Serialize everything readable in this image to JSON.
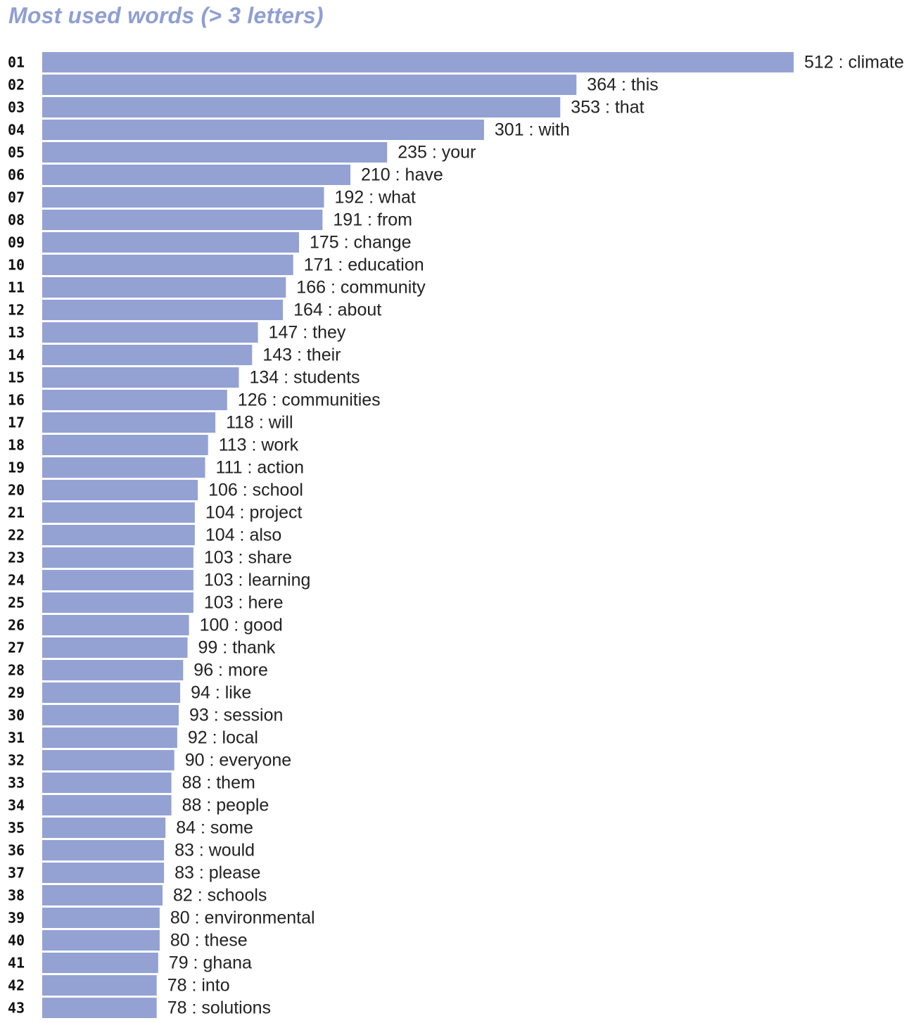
{
  "title": "Most used words (> 3 letters)",
  "colors": {
    "bar": "#93a2d3",
    "title": "#8f9fd2",
    "text": "#222222"
  },
  "chart_data": {
    "type": "bar",
    "orientation": "horizontal",
    "title": "Most used words (> 3 letters)",
    "xlabel": "",
    "ylabel": "",
    "xlim": [
      0,
      512
    ],
    "grid": false,
    "categories": [
      "01",
      "02",
      "03",
      "04",
      "05",
      "06",
      "07",
      "08",
      "09",
      "10",
      "11",
      "12",
      "13",
      "14",
      "15",
      "16",
      "17",
      "18",
      "19",
      "20",
      "21",
      "22",
      "23",
      "24",
      "25",
      "26",
      "27",
      "28",
      "29",
      "30",
      "31",
      "32",
      "33",
      "34",
      "35",
      "36",
      "37",
      "38",
      "39",
      "40",
      "41",
      "42",
      "43"
    ],
    "words": [
      "climate",
      "this",
      "that",
      "with",
      "your",
      "have",
      "what",
      "from",
      "change",
      "education",
      "community",
      "about",
      "they",
      "their",
      "students",
      "communities",
      "will",
      "work",
      "action",
      "school",
      "project",
      "also",
      "share",
      "learning",
      "here",
      "good",
      "thank",
      "more",
      "like",
      "session",
      "local",
      "everyone",
      "them",
      "people",
      "some",
      "would",
      "please",
      "schools",
      "environmental",
      "these",
      "ghana",
      "into",
      "solutions"
    ],
    "values": [
      512,
      364,
      353,
      301,
      235,
      210,
      192,
      191,
      175,
      171,
      166,
      164,
      147,
      143,
      134,
      126,
      118,
      113,
      111,
      106,
      104,
      104,
      103,
      103,
      103,
      100,
      99,
      96,
      94,
      93,
      92,
      90,
      88,
      88,
      84,
      83,
      83,
      82,
      80,
      80,
      79,
      78,
      78
    ],
    "labels": [
      "512 : climate",
      "364 : this",
      "353 : that",
      "301 : with",
      "235 : your",
      "210 : have",
      "192 : what",
      "191 : from",
      "175 : change",
      "171 : education",
      "166 : community",
      "164 : about",
      "147 : they",
      "143 : their",
      "134 : students",
      "126 : communities",
      "118 : will",
      "113 : work",
      "111 : action",
      "106 : school",
      "104 : project",
      "104 : also",
      "103 : share",
      "103 : learning",
      "103 : here",
      "100 : good",
      "99 : thank",
      "96 : more",
      "94 : like",
      "93 : session",
      "92 : local",
      "90 : everyone",
      "88 : them",
      "88 : people",
      "84 : some",
      "83 : would",
      "83 : please",
      "82 : schools",
      "80 : environmental",
      "80 : these",
      "79 : ghana",
      "78 : into",
      "78 : solutions"
    ]
  }
}
